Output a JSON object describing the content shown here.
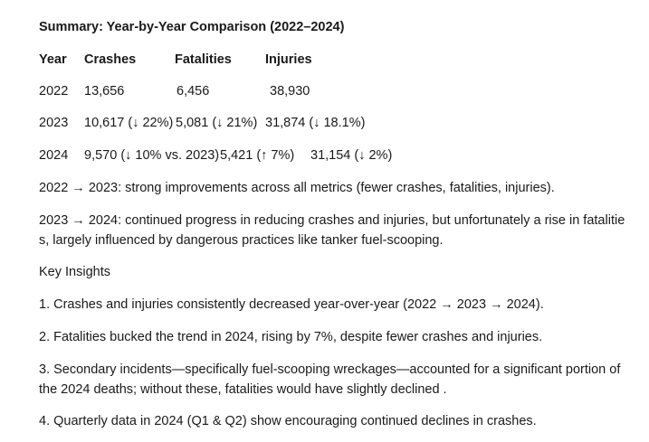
{
  "title": "Summary: Year-by-Year Comparison (2022–2024)",
  "table": {
    "headers": [
      "Year",
      "Crashes",
      "Fatalities",
      "Injuries"
    ],
    "rows": [
      [
        "2022",
        "13,656",
        "6,456",
        "38,930"
      ],
      [
        "2023",
        "10,617 (↓ 22%)",
        "5,081 (↓ 21%)",
        "31,874 (↓ 18.1%)"
      ],
      [
        "2024",
        "9,570 (↓ 10% vs. 2023)",
        "5,421 (↑ 7%)",
        "31,154 (↓ 2%)"
      ]
    ]
  },
  "trends": [
    "2022 → 2023: strong improvements across all metrics (fewer crashes, fatalities, injuries).",
    "2023 → 2024: continued progress in reducing crashes and injuries, but unfortunately a rise in fatalities, largely influenced by dangerous practices like tanker fuel-scooping."
  ],
  "insights_heading": "Key Insights",
  "insights": [
    "1. Crashes and injuries consistently decreased year-over-year (2022 → 2023 → 2024).",
    "2. Fatalities bucked the trend in 2024, rising by 7%, despite fewer crashes and injuries.",
    "3. Secondary incidents—specifically fuel-scooping wreckages—accounted for a significant portion of the 2024 deaths; without these, fatalities would have slightly declined .",
    "4. Quarterly data in 2024 (Q1 & Q2) show encouraging continued declines in crashes."
  ]
}
